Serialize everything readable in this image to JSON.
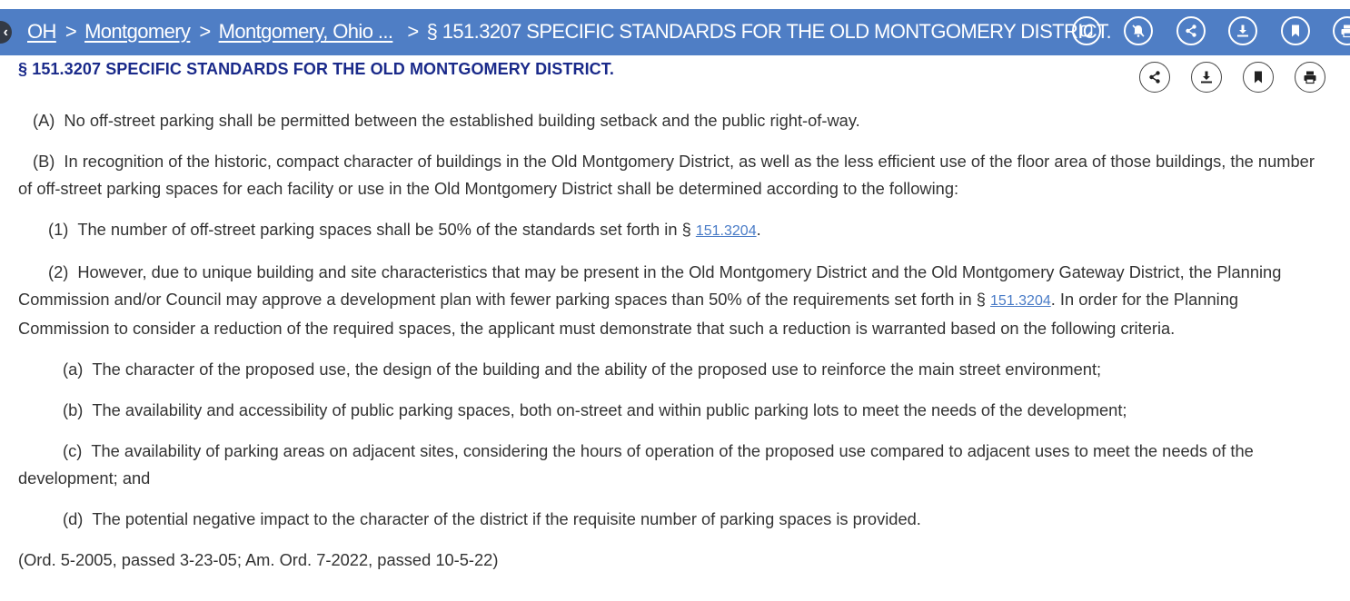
{
  "breadcrumb": {
    "items": [
      "OH",
      "Montgomery",
      "Montgomery, Ohio ..."
    ],
    "separator": ">",
    "current": "§ 151.3207 SPECIFIC STANDARDS FOR THE OLD MONTGOMERY DISTRICT."
  },
  "top_icons": [
    "notes-icon",
    "bell-off-icon",
    "share-icon",
    "download-icon",
    "bookmark-icon",
    "print-icon"
  ],
  "section": {
    "title": "§ 151.3207 SPECIFIC STANDARDS FOR THE OLD MONTGOMERY DISTRICT.",
    "icons": [
      "share-icon",
      "download-icon",
      "bookmark-icon",
      "print-icon"
    ]
  },
  "body": {
    "A": {
      "label": "(A)",
      "text": "No off-street parking shall be permitted between the established building setback and the public right-of-way."
    },
    "B": {
      "label": "(B)",
      "text": "In recognition of the historic, compact character of buildings in the Old Montgomery District, as well as the less efficient use of the floor area of those buildings, the number of off-street parking spaces for each facility or use in the Old Montgomery District shall be determined according to the following:"
    },
    "B1": {
      "label": "(1)",
      "text": "The number of off-street parking spaces shall be 50% of the standards set forth in § ",
      "link": "151.3204",
      "after": "."
    },
    "B2": {
      "label": "(2)",
      "text": "However, due to unique building and site characteristics that may be present in the Old Montgomery District and the Old Montgomery Gateway District, the Planning Commission and/or Council may approve a development plan with fewer parking spaces than 50% of the requirements set forth in § ",
      "link": "151.3204",
      "after": ". In order for the Planning Commission to consider a reduction of the required spaces, the applicant must demonstrate that such a reduction is warranted based on the following criteria."
    },
    "a": {
      "label": "(a)",
      "text": "The character of the proposed use, the design of the building and the ability of the proposed use to reinforce the main street environment;"
    },
    "b": {
      "label": "(b)",
      "text": "The availability and accessibility of public parking spaces, both on-street and within public parking lots to meet the needs of the development;"
    },
    "c": {
      "label": "(c)",
      "text": "The availability of parking areas on adjacent sites, considering the hours of operation of the proposed use compared to adjacent uses to meet the needs of the development; and"
    },
    "d": {
      "label": "(d)",
      "text": "The potential negative impact to the character of the district if the requisite number of parking spaces is provided."
    },
    "history": "(Ord. 5-2005, passed 3-23-05; Am. Ord. 7-2022, passed 10-5-22)"
  }
}
